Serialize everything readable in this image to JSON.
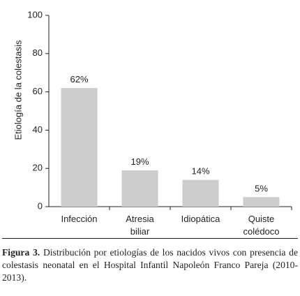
{
  "chart_data": {
    "type": "bar",
    "ylabel": "Etiología de la colestasis",
    "xlabel": "",
    "ylim": [
      0,
      100
    ],
    "yticks": [
      0,
      20,
      40,
      60,
      80,
      100
    ],
    "categories": [
      [
        "Infección"
      ],
      [
        "Atresia",
        "biliar"
      ],
      [
        "Idiopática"
      ],
      [
        "Quiste",
        "colédoco"
      ]
    ],
    "values": [
      62,
      19,
      14,
      5
    ],
    "data_labels": [
      "62%",
      "19%",
      "14%",
      "5%"
    ],
    "bar_color": "#cccccc",
    "axis_color": "#231f20",
    "grid": false
  },
  "caption": {
    "label": "Figura 3.",
    "text": " Distribución por etiologías de los nacidos vivos con presencia de colestasis neonatal en el Hospital Infantil Napoleón Franco Pareja (2010-2013)."
  }
}
